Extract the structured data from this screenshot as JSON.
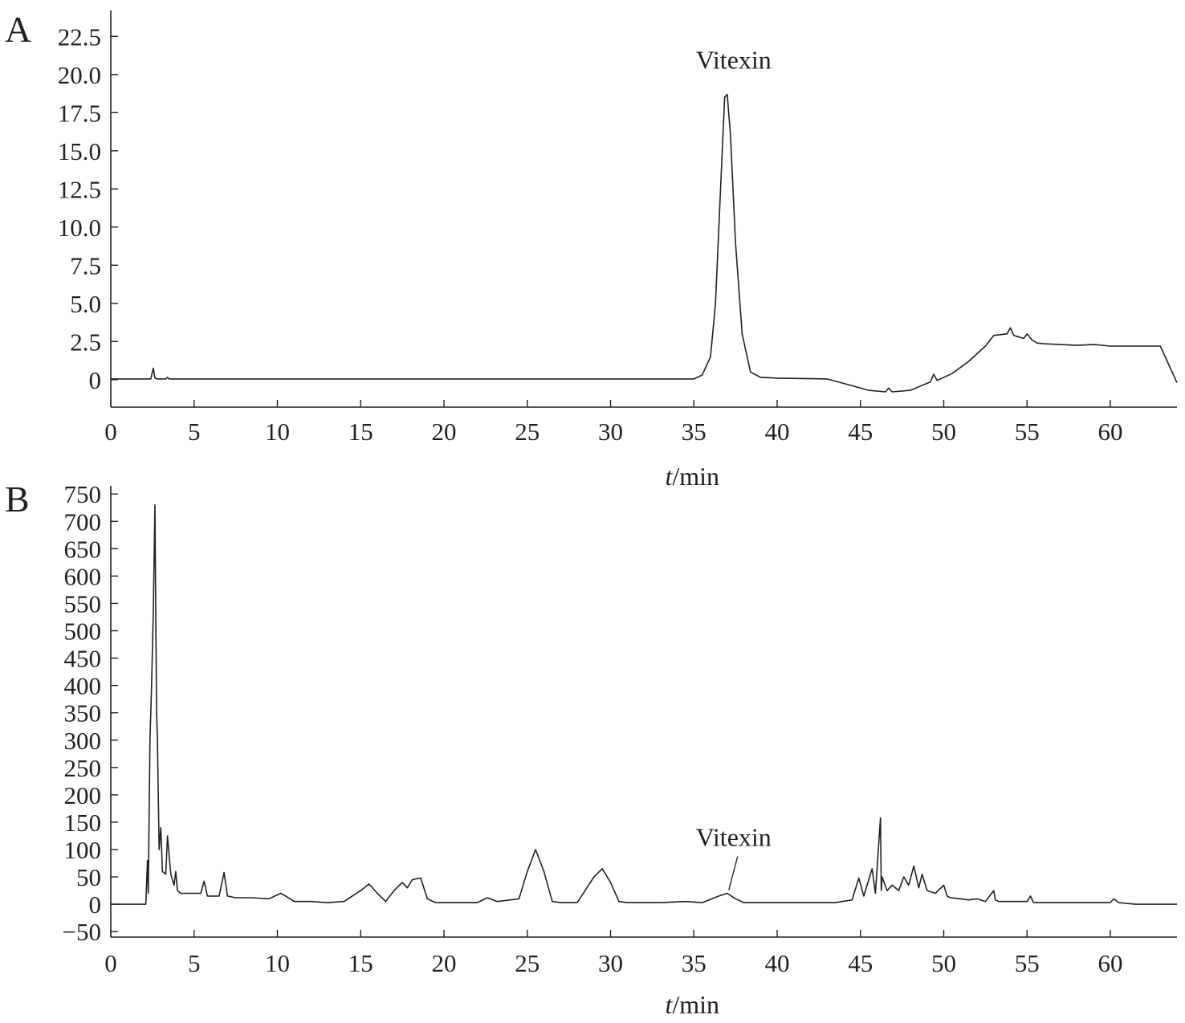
{
  "chart_data": [
    {
      "type": "line",
      "panel_label": "A",
      "xlabel_italic": "t",
      "xlabel_rest": "/min",
      "ylabel": "",
      "xlim": [
        0,
        64
      ],
      "ylim": [
        -1.8,
        24.2
      ],
      "xticks": [
        0,
        5,
        10,
        15,
        20,
        25,
        30,
        35,
        40,
        45,
        50,
        55,
        60
      ],
      "yticks": [
        0,
        2.5,
        5.0,
        7.5,
        10.0,
        12.5,
        15.0,
        17.5,
        20.0,
        22.5
      ],
      "ytick_labels": [
        "0",
        "2.5",
        "5.0",
        "7.5",
        "10.0",
        "12.5",
        "15.0",
        "17.5",
        "20.0",
        "22.5"
      ],
      "grid": false,
      "annotations": [
        {
          "text": "Vitexin",
          "x": 37.0,
          "y": 18.8
        }
      ],
      "series": [
        {
          "x": [
            0,
            2.4,
            2.55,
            2.65,
            2.8,
            3.3,
            3.4,
            3.5,
            35.0,
            35.5,
            36.0,
            36.3,
            36.6,
            36.85,
            37.0,
            37.2,
            37.5,
            37.9,
            38.4,
            39.0,
            40.0,
            43.0,
            44.5,
            45.5,
            46.5,
            46.7,
            46.9,
            48.0,
            49.2,
            49.4,
            49.6,
            50.5,
            51.5,
            52.5,
            53.0,
            53.8,
            54.0,
            54.2,
            54.8,
            55.0,
            55.3,
            55.6,
            56.0,
            57.0,
            58.0,
            59.0,
            60.0,
            62.0,
            63.0,
            64.0
          ],
          "y": [
            0.05,
            0.05,
            0.75,
            0.1,
            0.05,
            0.05,
            0.15,
            0.05,
            0.05,
            0.3,
            1.5,
            5.0,
            12.5,
            18.5,
            18.7,
            16.0,
            9.0,
            3.0,
            0.5,
            0.15,
            0.1,
            0.05,
            -0.4,
            -0.7,
            -0.8,
            -0.55,
            -0.8,
            -0.7,
            -0.15,
            0.35,
            -0.05,
            0.4,
            1.2,
            2.2,
            2.9,
            3.0,
            3.4,
            2.9,
            2.7,
            3.0,
            2.6,
            2.4,
            2.35,
            2.3,
            2.25,
            2.3,
            2.2,
            2.2,
            2.2,
            -0.2
          ]
        }
      ]
    },
    {
      "type": "line",
      "panel_label": "B",
      "xlabel_italic": "t",
      "xlabel_rest": "/min",
      "ylabel": "",
      "xlim": [
        0,
        64
      ],
      "ylim": [
        -60,
        765
      ],
      "xticks": [
        0,
        5,
        10,
        15,
        20,
        25,
        30,
        35,
        40,
        45,
        50,
        55,
        60
      ],
      "yticks": [
        -50,
        0,
        50,
        100,
        150,
        200,
        250,
        300,
        350,
        400,
        450,
        500,
        550,
        600,
        650,
        700,
        750
      ],
      "ytick_labels": [
        "−50",
        "0",
        "50",
        "100",
        "150",
        "200",
        "250",
        "300",
        "350",
        "400",
        "450",
        "500",
        "550",
        "600",
        "650",
        "700",
        "750"
      ],
      "grid": false,
      "annotations": [
        {
          "text": "Vitexin",
          "x": 37.0,
          "y": 20
        }
      ],
      "series": [
        {
          "x": [
            0,
            2.1,
            2.2,
            2.25,
            2.35,
            2.45,
            2.55,
            2.65,
            2.7,
            2.75,
            2.8,
            2.9,
            3.0,
            3.1,
            3.3,
            3.4,
            3.6,
            3.8,
            3.9,
            4.0,
            4.2,
            4.8,
            5.4,
            5.6,
            5.8,
            6.5,
            6.8,
            7.0,
            7.5,
            8.5,
            9.5,
            10.2,
            10.5,
            11.0,
            12.0,
            13.0,
            14.0,
            15.0,
            15.5,
            16.0,
            16.5,
            17.0,
            17.5,
            17.8,
            18.1,
            18.6,
            19.0,
            19.5,
            20.0,
            21.0,
            22.0,
            22.6,
            23.2,
            24.0,
            24.5,
            25.0,
            25.5,
            26.0,
            26.5,
            27.0,
            28.0,
            29.0,
            29.5,
            30.0,
            30.5,
            31.0,
            33.0,
            34.5,
            35.5,
            36.5,
            37.0,
            37.5,
            38.0,
            39.0,
            41.0,
            43.5,
            44.5,
            44.9,
            45.2,
            45.5,
            45.7,
            45.9,
            46.2,
            46.25,
            46.3,
            46.6,
            46.9,
            47.3,
            47.6,
            47.9,
            48.2,
            48.5,
            48.7,
            49.0,
            49.5,
            50.0,
            50.2,
            50.4,
            51.0,
            51.5,
            52.0,
            52.5,
            53.0,
            53.1,
            53.3,
            54.0,
            55.0,
            55.2,
            55.4,
            57.0,
            59.0,
            60.0,
            60.2,
            60.5,
            61.5,
            64.0
          ],
          "y": [
            0,
            0,
            80,
            20,
            300,
            400,
            530,
            730,
            530,
            350,
            300,
            100,
            140,
            60,
            55,
            125,
            55,
            35,
            60,
            25,
            20,
            20,
            20,
            42,
            15,
            15,
            58,
            15,
            12,
            12,
            10,
            20,
            15,
            5,
            5,
            3,
            5,
            25,
            37,
            20,
            5,
            25,
            40,
            30,
            45,
            48,
            10,
            3,
            3,
            3,
            3,
            12,
            5,
            8,
            10,
            60,
            100,
            60,
            5,
            3,
            3,
            50,
            65,
            40,
            5,
            3,
            3,
            5,
            3,
            15,
            20,
            10,
            3,
            3,
            3,
            3,
            8,
            48,
            15,
            45,
            65,
            20,
            158,
            25,
            50,
            25,
            35,
            25,
            50,
            35,
            70,
            30,
            55,
            25,
            20,
            35,
            15,
            12,
            10,
            8,
            10,
            5,
            25,
            8,
            5,
            5,
            5,
            15,
            3,
            3,
            3,
            3,
            10,
            3,
            0,
            0
          ]
        }
      ]
    }
  ]
}
